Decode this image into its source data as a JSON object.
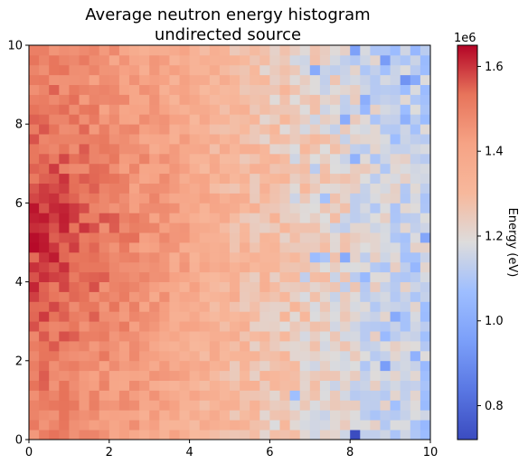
{
  "chart_data": {
    "type": "heatmap",
    "title_line1": "Average neutron energy histogram",
    "title_line2": "undirected source",
    "xlabel": "",
    "ylabel": "",
    "xlim": [
      0,
      10
    ],
    "ylim": [
      0,
      10
    ],
    "x_ticks": [
      "0",
      "2",
      "4",
      "6",
      "8",
      "10"
    ],
    "y_ticks": [
      "0",
      "2",
      "4",
      "6",
      "8",
      "10"
    ],
    "bins": [
      40,
      40
    ],
    "colormap": "coolwarm",
    "colorbar": {
      "label": "Energy (eV)",
      "multiplier": "1e6",
      "vmin": 0.72,
      "vmax": 1.65,
      "ticks": [
        "0.8",
        "1.0",
        "1.2",
        "1.4",
        "1.6"
      ],
      "tick_values": [
        0.8,
        1.0,
        1.2,
        1.4,
        1.6
      ]
    },
    "value_description": "Average energy in units of 1e6 eV, highest near x=0,y=5 (~1.62) decreasing toward the right edge (~1.1-1.2), with scattered low cells near x≈8-10",
    "hot_cell": {
      "x": 0.1,
      "y": 5.1,
      "value": 1.64
    },
    "cold_cell": {
      "x": 8.1,
      "y": 0.1,
      "value": 0.72
    },
    "approx_profile": {
      "x_centers": [
        0.5,
        1.5,
        2.5,
        3.5,
        4.5,
        5.5,
        6.5,
        7.5,
        8.5,
        9.5
      ],
      "mean_values": [
        1.52,
        1.49,
        1.45,
        1.4,
        1.35,
        1.3,
        1.26,
        1.22,
        1.18,
        1.15
      ]
    }
  }
}
